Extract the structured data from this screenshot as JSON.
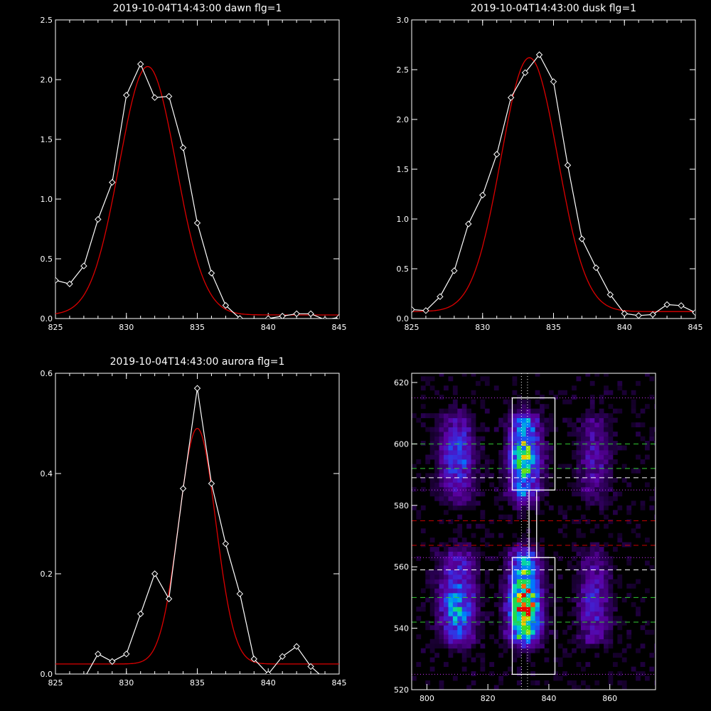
{
  "colors": {
    "background": "#000000",
    "axis": "#ffffff",
    "observed": "#ffffff",
    "fit": "#dd0000",
    "box": "#ffffff",
    "dotted": "#cc33ff",
    "dash_green": "#33cc33",
    "dash_white": "#ffffff",
    "dash_red": "#cc0000"
  },
  "chart_data": [
    {
      "type": "line",
      "title": "2019-10-04T14:43:00 dawn flg=1",
      "xlim": [
        825,
        845
      ],
      "ylim": [
        0,
        2.5
      ],
      "xticks": [
        "825",
        "830",
        "835",
        "840",
        "845"
      ],
      "yticks": [
        "0.0",
        "0.5",
        "1.0",
        "1.5",
        "2.0",
        "2.5"
      ],
      "observed_markers": "diamond",
      "series": [
        {
          "x": [
            825,
            826,
            827,
            828,
            829,
            830,
            831,
            832,
            833,
            834,
            835,
            836,
            837,
            838,
            839,
            840,
            841,
            842,
            843,
            844,
            845
          ],
          "values": [
            0.32,
            0.29,
            0.44,
            0.83,
            1.14,
            1.87,
            2.13,
            1.85,
            1.86,
            1.43,
            0.8,
            0.38,
            0.11,
            0.0,
            -0.02,
            0.0,
            0.02,
            0.04,
            0.04,
            -0.01,
            0.01
          ]
        },
        {
          "fit": "gaussian",
          "amplitude": 2.08,
          "center": 831.5,
          "sigma": 2.0,
          "baseline": 0.03
        }
      ]
    },
    {
      "type": "line",
      "title": "2019-10-04T14:43:00 dusk flg=1",
      "xlim": [
        825,
        845
      ],
      "ylim": [
        0,
        3.0
      ],
      "xticks": [
        "825",
        "830",
        "835",
        "840",
        "845"
      ],
      "yticks": [
        "0.0",
        "0.5",
        "1.0",
        "1.5",
        "2.0",
        "2.5",
        "3.0"
      ],
      "observed_markers": "diamond",
      "series": [
        {
          "x": [
            825,
            826,
            827,
            828,
            829,
            830,
            831,
            832,
            833,
            834,
            835,
            836,
            837,
            838,
            839,
            840,
            841,
            842,
            843,
            844,
            845
          ],
          "values": [
            0.09,
            0.08,
            0.22,
            0.48,
            0.95,
            1.24,
            1.65,
            2.22,
            2.47,
            2.65,
            2.38,
            1.54,
            0.8,
            0.51,
            0.24,
            0.05,
            0.03,
            0.04,
            0.14,
            0.13,
            0.06
          ]
        },
        {
          "fit": "gaussian",
          "amplitude": 2.55,
          "center": 833.3,
          "sigma": 2.0,
          "baseline": 0.07
        }
      ]
    },
    {
      "type": "line",
      "title": "2019-10-04T14:43:00 aurora flg=1",
      "xlim": [
        825,
        845
      ],
      "ylim": [
        0,
        0.6
      ],
      "xticks": [
        "825",
        "830",
        "835",
        "840",
        "845"
      ],
      "yticks": [
        "0.0",
        "0.2",
        "0.4",
        "0.6"
      ],
      "observed_markers": "diamond",
      "series": [
        {
          "x": [
            825,
            826,
            827,
            828,
            829,
            830,
            831,
            832,
            833,
            834,
            835,
            836,
            837,
            838,
            839,
            840,
            841,
            842,
            843,
            844,
            845
          ],
          "values": [
            -0.02,
            -0.01,
            -0.01,
            0.04,
            0.025,
            0.04,
            0.12,
            0.2,
            0.15,
            0.37,
            0.57,
            0.38,
            0.26,
            0.16,
            0.03,
            0.0,
            0.035,
            0.055,
            0.015,
            -0.01,
            -0.02
          ]
        },
        {
          "fit": "gaussian",
          "amplitude": 0.47,
          "center": 835.0,
          "sigma": 1.3,
          "baseline": 0.02
        }
      ]
    },
    {
      "type": "heatmap",
      "xlim": [
        795,
        875
      ],
      "ylim": [
        520,
        623
      ],
      "xticks": [
        "800",
        "820",
        "840",
        "860"
      ],
      "yticks": [
        "520",
        "540",
        "560",
        "580",
        "600",
        "620"
      ],
      "colormap": "rainbow",
      "emission_columns": [
        {
          "x_center": 810,
          "width": 4,
          "strength": 0.55
        },
        {
          "x_center": 832,
          "width": 3.5,
          "strength": 1.0
        },
        {
          "x_center": 855,
          "width": 3.5,
          "strength": 0.35
        }
      ],
      "emission_bands": [
        {
          "y_min": 538,
          "y_max": 562,
          "peak_y": 547,
          "strength": 1.0
        },
        {
          "y_min": 584,
          "y_max": 607,
          "peak_y": 596,
          "strength": 0.75
        }
      ],
      "boxes": [
        {
          "x": [
            828,
            842
          ],
          "y": [
            585,
            615
          ]
        },
        {
          "x": [
            833.5,
            836
          ],
          "y": [
            563,
            585
          ]
        },
        {
          "x": [
            828,
            842
          ],
          "y": [
            525,
            563
          ]
        }
      ],
      "horizontal_lines": [
        {
          "y": 615,
          "style": "dotted",
          "color": "#cc33ff"
        },
        {
          "y": 600,
          "style": "dashed",
          "color": "#33cc33"
        },
        {
          "y": 592,
          "style": "dashed",
          "color": "#33cc33"
        },
        {
          "y": 589,
          "style": "dashed",
          "color": "#ffffff"
        },
        {
          "y": 585,
          "style": "dotted",
          "color": "#cc33ff"
        },
        {
          "y": 575,
          "style": "dashed",
          "color": "#cc0000"
        },
        {
          "y": 567,
          "style": "dashed",
          "color": "#cc0000"
        },
        {
          "y": 563,
          "style": "dotted",
          "color": "#cc33ff"
        },
        {
          "y": 559,
          "style": "dashed",
          "color": "#ffffff"
        },
        {
          "y": 550,
          "style": "dashed",
          "color": "#33cc33"
        },
        {
          "y": 542,
          "style": "dashed",
          "color": "#33cc33"
        },
        {
          "y": 525,
          "style": "dotted",
          "color": "#cc33ff"
        }
      ],
      "vertical_lines": [
        {
          "x": 831,
          "style": "dotted",
          "color": "#ffffff"
        },
        {
          "x": 833,
          "style": "dotted",
          "color": "#ffffff"
        }
      ]
    }
  ]
}
